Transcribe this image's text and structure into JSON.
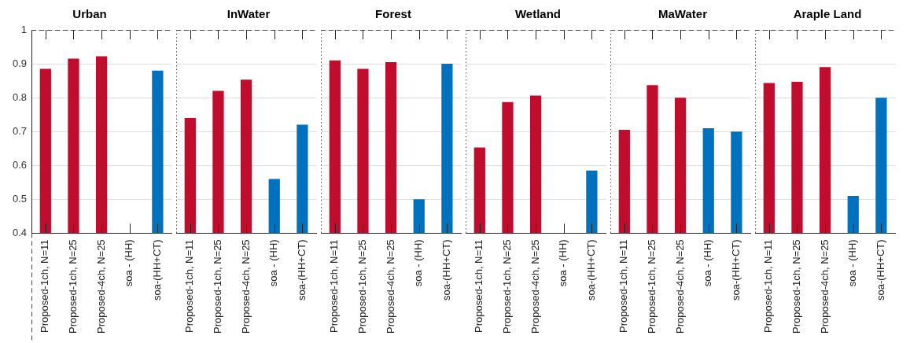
{
  "chart_data": [
    {
      "type": "bar",
      "title": "Urban",
      "categories": [
        "Proposed-1ch, N=11",
        "Proposed-1ch, N=25",
        "Proposed-4ch, N=25",
        "soa - (HH)",
        "soa-(HH+CT)"
      ],
      "values": [
        0.885,
        0.915,
        0.922,
        null,
        0.88
      ],
      "colors": [
        "#c00d2d",
        "#c00d2d",
        "#c00d2d",
        "#0072bd",
        "#0072bd"
      ],
      "ylim": [
        0.4,
        1
      ],
      "yticks": [
        0.4,
        0.5,
        0.6,
        0.7,
        0.8,
        0.9,
        1
      ],
      "grid": "y"
    },
    {
      "type": "bar",
      "title": "InWater",
      "categories": [
        "Proposed-1ch, N=11",
        "Proposed-1ch, N=25",
        "Proposed-4ch, N=25",
        "soa - (HH)",
        "soa-(HH+CT)"
      ],
      "values": [
        0.74,
        0.82,
        0.853,
        0.56,
        0.72
      ],
      "colors": [
        "#c00d2d",
        "#c00d2d",
        "#c00d2d",
        "#0072bd",
        "#0072bd"
      ],
      "ylim": [
        0.4,
        1
      ],
      "yticks": [
        0.4,
        0.5,
        0.6,
        0.7,
        0.8,
        0.9,
        1
      ],
      "grid": "y",
      "tick_labels": "x"
    },
    {
      "type": "bar",
      "title": "Forest",
      "categories": [
        "Proposed-1ch, N=11",
        "Proposed-1ch, N=25",
        "Proposed-4ch, N=25",
        "soa - (HH)",
        "soa-(HH+CT)"
      ],
      "values": [
        0.91,
        0.885,
        0.905,
        0.5,
        0.9
      ],
      "colors": [
        "#c00d2d",
        "#c00d2d",
        "#c00d2d",
        "#0072bd",
        "#0072bd"
      ],
      "ylim": [
        0.4,
        1
      ],
      "yticks": [
        0.4,
        0.5,
        0.6,
        0.7,
        0.8,
        0.9,
        1
      ],
      "grid": "y",
      "tick_labels": "x"
    },
    {
      "type": "bar",
      "title": "Wetland",
      "categories": [
        "Proposed-1ch, N=11",
        "Proposed-1ch, N=25",
        "Proposed-4ch, N=25",
        "soa - (HH)",
        "soa-(HH+CT)"
      ],
      "values": [
        0.653,
        0.787,
        0.806,
        null,
        0.585
      ],
      "colors": [
        "#c00d2d",
        "#c00d2d",
        "#c00d2d",
        "#0072bd",
        "#0072bd"
      ],
      "ylim": [
        0.4,
        1
      ],
      "yticks": [
        0.4,
        0.5,
        0.6,
        0.7,
        0.8,
        0.9,
        1
      ],
      "grid": "y",
      "tick_labels": "x"
    },
    {
      "type": "bar",
      "title": "MaWater",
      "categories": [
        "Proposed-1ch, N=11",
        "Proposed-1ch, N=25",
        "Proposed-4ch, N=25",
        "soa - (HH)",
        "soa-(HH+CT)"
      ],
      "values": [
        0.705,
        0.837,
        0.8,
        0.71,
        0.7
      ],
      "colors": [
        "#c00d2d",
        "#c00d2d",
        "#c00d2d",
        "#0072bd",
        "#0072bd"
      ],
      "ylim": [
        0.4,
        1
      ],
      "yticks": [
        0.4,
        0.5,
        0.6,
        0.7,
        0.8,
        0.9,
        1
      ],
      "grid": "y",
      "tick_labels": "x"
    },
    {
      "type": "bar",
      "title": "Araple Land",
      "categories": [
        "Proposed-1ch, N=11",
        "Proposed-1ch, N=25",
        "Proposed-4ch, N=25",
        "soa - (HH)",
        "soa-(HH+CT)"
      ],
      "values": [
        0.843,
        0.847,
        0.89,
        0.51,
        0.8
      ],
      "colors": [
        "#c00d2d",
        "#c00d2d",
        "#c00d2d",
        "#0072bd",
        "#0072bd"
      ],
      "ylim": [
        0.4,
        1
      ],
      "yticks": [
        0.4,
        0.5,
        0.6,
        0.7,
        0.8,
        0.9,
        1
      ],
      "grid": "y",
      "tick_labels": "x"
    }
  ]
}
